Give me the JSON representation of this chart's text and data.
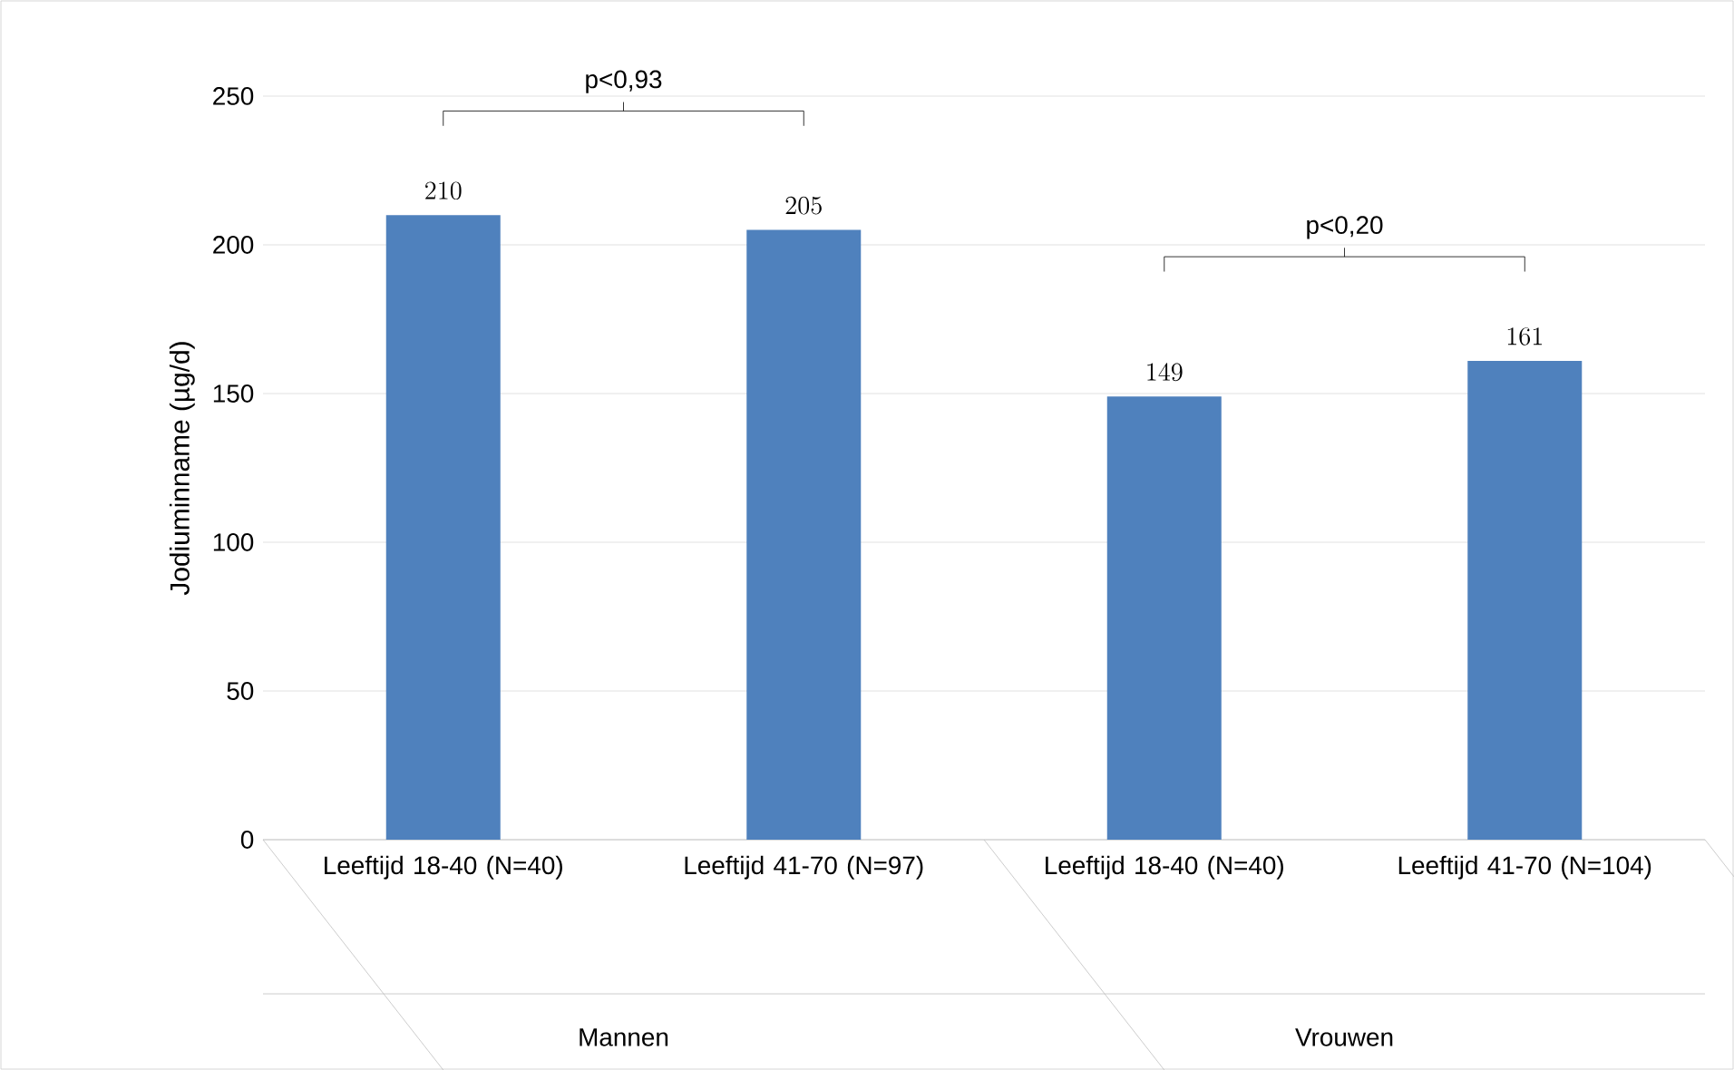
{
  "chart_data": {
    "type": "bar",
    "ylabel": "Jodiuminname (µg/d)",
    "categories": [
      "Leeftijd 18-40 (N=40)",
      "Leeftijd 41-70 (N=97)",
      "Leeftijd 18-40 (N=40)",
      "Leeftijd 41-70 (N=104)"
    ],
    "values": [
      210,
      205,
      149,
      161
    ],
    "color": "#4f81bd",
    "ylim": [
      0,
      250
    ],
    "yticks": [
      0,
      50,
      100,
      150,
      200,
      250
    ],
    "grid": "y",
    "data_labels": true,
    "annotations": [
      "p<0,93",
      "p<0,20",
      "Mannen",
      "Vrouwen"
    ]
  }
}
